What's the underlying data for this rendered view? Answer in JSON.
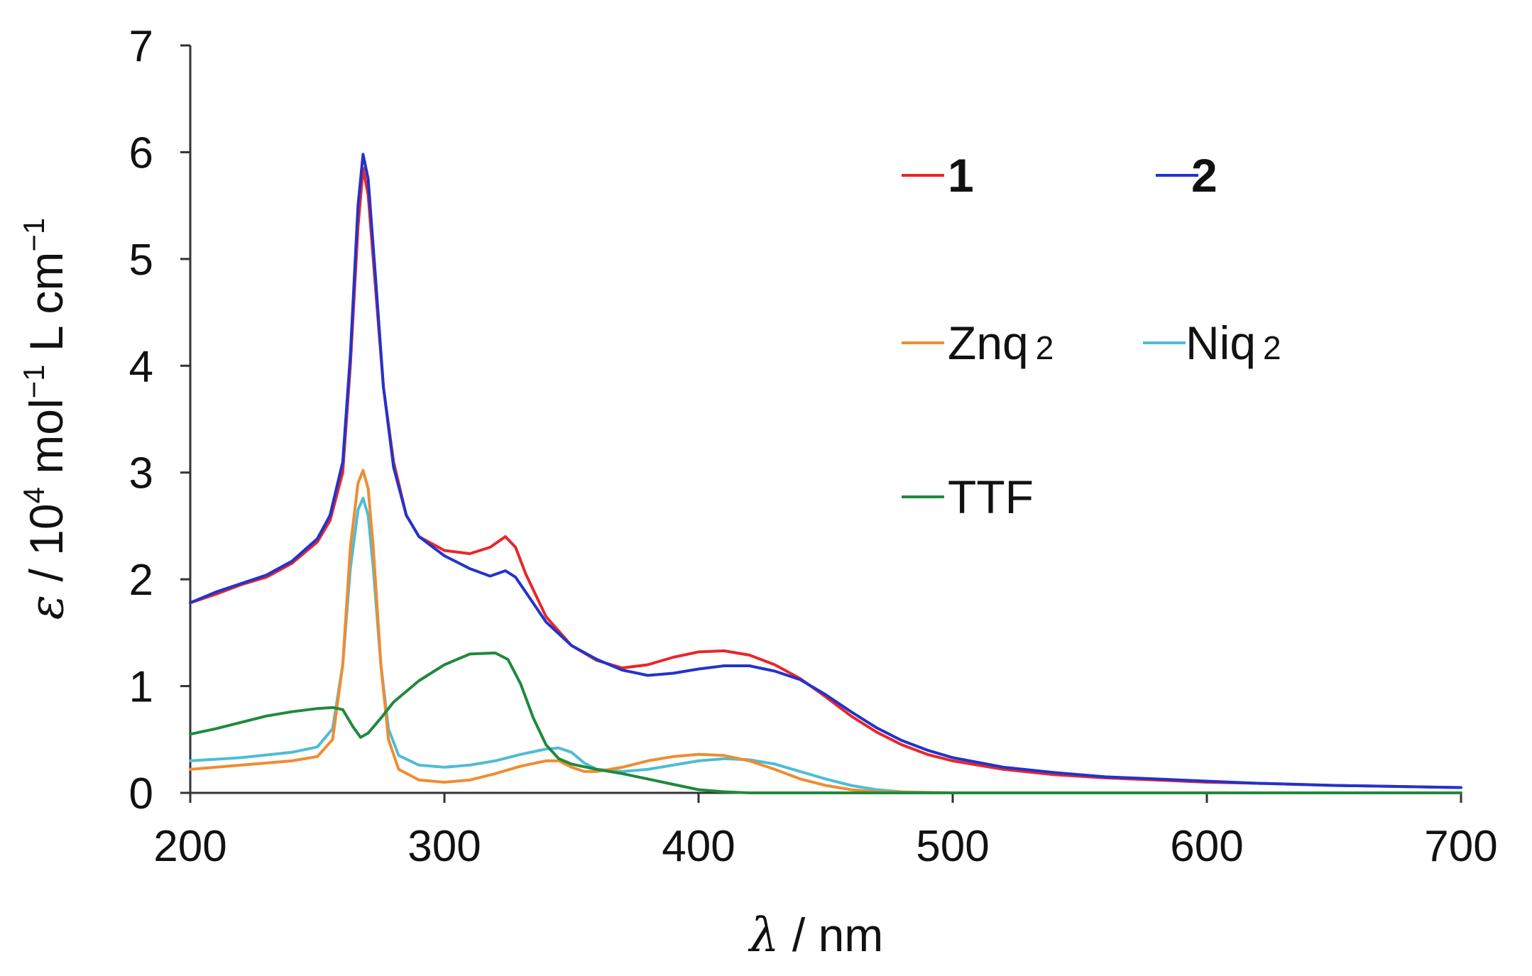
{
  "chart_data": {
    "type": "line",
    "title": "",
    "xlabel": {
      "symbol": "λ",
      "rest": " / nm"
    },
    "ylabel": {
      "symbol": "ε",
      "p1": " / 10",
      "p1_sup": "4",
      "p2": " mol",
      "p2_sup": "−1",
      "p3": " L cm",
      "p3_sup": "−1"
    },
    "xlim": [
      200,
      700
    ],
    "ylim": [
      0,
      7
    ],
    "xticks": [
      200,
      300,
      400,
      500,
      600,
      700
    ],
    "yticks": [
      0,
      1,
      2,
      3,
      4,
      5,
      6,
      7
    ],
    "grid": false,
    "legend_position": "top-right",
    "series": [
      {
        "key": "s1",
        "name": "1",
        "bold": true,
        "color": "#e8262b",
        "points": [
          [
            200,
            1.78
          ],
          [
            210,
            1.86
          ],
          [
            220,
            1.95
          ],
          [
            230,
            2.02
          ],
          [
            240,
            2.15
          ],
          [
            250,
            2.35
          ],
          [
            255,
            2.55
          ],
          [
            260,
            3.0
          ],
          [
            263,
            4.0
          ],
          [
            266,
            5.3
          ],
          [
            268,
            5.85
          ],
          [
            270,
            5.6
          ],
          [
            273,
            4.7
          ],
          [
            276,
            3.8
          ],
          [
            280,
            3.1
          ],
          [
            285,
            2.6
          ],
          [
            290,
            2.4
          ],
          [
            300,
            2.27
          ],
          [
            310,
            2.24
          ],
          [
            318,
            2.3
          ],
          [
            324,
            2.4
          ],
          [
            328,
            2.3
          ],
          [
            332,
            2.05
          ],
          [
            340,
            1.65
          ],
          [
            350,
            1.38
          ],
          [
            360,
            1.24
          ],
          [
            370,
            1.17
          ],
          [
            380,
            1.2
          ],
          [
            390,
            1.27
          ],
          [
            400,
            1.32
          ],
          [
            410,
            1.33
          ],
          [
            420,
            1.29
          ],
          [
            430,
            1.2
          ],
          [
            440,
            1.07
          ],
          [
            450,
            0.9
          ],
          [
            460,
            0.72
          ],
          [
            470,
            0.57
          ],
          [
            480,
            0.45
          ],
          [
            490,
            0.36
          ],
          [
            500,
            0.3
          ],
          [
            520,
            0.22
          ],
          [
            540,
            0.17
          ],
          [
            560,
            0.14
          ],
          [
            580,
            0.12
          ],
          [
            600,
            0.1
          ],
          [
            620,
            0.09
          ],
          [
            650,
            0.07
          ],
          [
            700,
            0.05
          ]
        ]
      },
      {
        "key": "s2",
        "name": "2",
        "bold": true,
        "color": "#2233cc",
        "points": [
          [
            200,
            1.78
          ],
          [
            210,
            1.88
          ],
          [
            220,
            1.96
          ],
          [
            230,
            2.04
          ],
          [
            240,
            2.17
          ],
          [
            250,
            2.38
          ],
          [
            255,
            2.6
          ],
          [
            260,
            3.1
          ],
          [
            263,
            4.1
          ],
          [
            266,
            5.5
          ],
          [
            268,
            5.98
          ],
          [
            270,
            5.75
          ],
          [
            273,
            4.8
          ],
          [
            276,
            3.8
          ],
          [
            280,
            3.05
          ],
          [
            285,
            2.6
          ],
          [
            290,
            2.4
          ],
          [
            300,
            2.22
          ],
          [
            310,
            2.1
          ],
          [
            318,
            2.03
          ],
          [
            324,
            2.08
          ],
          [
            328,
            2.02
          ],
          [
            332,
            1.88
          ],
          [
            340,
            1.6
          ],
          [
            350,
            1.38
          ],
          [
            360,
            1.25
          ],
          [
            370,
            1.15
          ],
          [
            380,
            1.1
          ],
          [
            390,
            1.12
          ],
          [
            400,
            1.16
          ],
          [
            410,
            1.19
          ],
          [
            420,
            1.19
          ],
          [
            430,
            1.14
          ],
          [
            440,
            1.06
          ],
          [
            450,
            0.92
          ],
          [
            460,
            0.76
          ],
          [
            470,
            0.61
          ],
          [
            480,
            0.49
          ],
          [
            490,
            0.4
          ],
          [
            500,
            0.33
          ],
          [
            520,
            0.24
          ],
          [
            540,
            0.19
          ],
          [
            560,
            0.15
          ],
          [
            580,
            0.13
          ],
          [
            600,
            0.11
          ],
          [
            620,
            0.09
          ],
          [
            650,
            0.07
          ],
          [
            700,
            0.05
          ]
        ]
      },
      {
        "key": "zn",
        "name": "Znq",
        "sub": "2",
        "bold": false,
        "color": "#f08c30",
        "points": [
          [
            200,
            0.22
          ],
          [
            220,
            0.26
          ],
          [
            240,
            0.3
          ],
          [
            250,
            0.34
          ],
          [
            256,
            0.5
          ],
          [
            260,
            1.2
          ],
          [
            263,
            2.3
          ],
          [
            266,
            2.9
          ],
          [
            268,
            3.02
          ],
          [
            270,
            2.85
          ],
          [
            272,
            2.3
          ],
          [
            275,
            1.2
          ],
          [
            278,
            0.5
          ],
          [
            282,
            0.22
          ],
          [
            290,
            0.12
          ],
          [
            300,
            0.1
          ],
          [
            310,
            0.12
          ],
          [
            320,
            0.18
          ],
          [
            330,
            0.25
          ],
          [
            340,
            0.3
          ],
          [
            345,
            0.3
          ],
          [
            350,
            0.24
          ],
          [
            355,
            0.2
          ],
          [
            360,
            0.2
          ],
          [
            370,
            0.24
          ],
          [
            380,
            0.3
          ],
          [
            390,
            0.34
          ],
          [
            400,
            0.36
          ],
          [
            410,
            0.35
          ],
          [
            420,
            0.3
          ],
          [
            430,
            0.22
          ],
          [
            440,
            0.13
          ],
          [
            450,
            0.07
          ],
          [
            460,
            0.03
          ],
          [
            470,
            0.01
          ],
          [
            500,
            0.0
          ],
          [
            700,
            0.0
          ]
        ]
      },
      {
        "key": "ni",
        "name": "Niq",
        "sub": "2",
        "bold": false,
        "color": "#4fbcd4",
        "points": [
          [
            200,
            0.3
          ],
          [
            220,
            0.33
          ],
          [
            240,
            0.38
          ],
          [
            250,
            0.43
          ],
          [
            256,
            0.6
          ],
          [
            260,
            1.2
          ],
          [
            263,
            2.1
          ],
          [
            266,
            2.65
          ],
          [
            268,
            2.76
          ],
          [
            270,
            2.6
          ],
          [
            272,
            2.1
          ],
          [
            275,
            1.2
          ],
          [
            278,
            0.6
          ],
          [
            282,
            0.35
          ],
          [
            290,
            0.26
          ],
          [
            300,
            0.24
          ],
          [
            310,
            0.26
          ],
          [
            320,
            0.3
          ],
          [
            330,
            0.36
          ],
          [
            340,
            0.41
          ],
          [
            345,
            0.42
          ],
          [
            350,
            0.38
          ],
          [
            355,
            0.28
          ],
          [
            360,
            0.22
          ],
          [
            370,
            0.2
          ],
          [
            380,
            0.22
          ],
          [
            390,
            0.26
          ],
          [
            400,
            0.3
          ],
          [
            410,
            0.32
          ],
          [
            420,
            0.31
          ],
          [
            430,
            0.27
          ],
          [
            440,
            0.2
          ],
          [
            450,
            0.13
          ],
          [
            460,
            0.07
          ],
          [
            470,
            0.03
          ],
          [
            480,
            0.01
          ],
          [
            500,
            0.0
          ],
          [
            700,
            0.0
          ]
        ]
      },
      {
        "key": "ttf",
        "name": "TTF",
        "bold": false,
        "color": "#1e8a3c",
        "points": [
          [
            200,
            0.55
          ],
          [
            210,
            0.6
          ],
          [
            220,
            0.66
          ],
          [
            230,
            0.72
          ],
          [
            240,
            0.76
          ],
          [
            250,
            0.79
          ],
          [
            256,
            0.8
          ],
          [
            260,
            0.78
          ],
          [
            264,
            0.62
          ],
          [
            267,
            0.52
          ],
          [
            270,
            0.56
          ],
          [
            275,
            0.7
          ],
          [
            280,
            0.85
          ],
          [
            290,
            1.05
          ],
          [
            300,
            1.2
          ],
          [
            310,
            1.3
          ],
          [
            320,
            1.31
          ],
          [
            325,
            1.25
          ],
          [
            330,
            1.02
          ],
          [
            335,
            0.7
          ],
          [
            340,
            0.45
          ],
          [
            345,
            0.32
          ],
          [
            350,
            0.27
          ],
          [
            360,
            0.22
          ],
          [
            370,
            0.18
          ],
          [
            380,
            0.13
          ],
          [
            390,
            0.08
          ],
          [
            400,
            0.03
          ],
          [
            410,
            0.01
          ],
          [
            420,
            0.0
          ],
          [
            700,
            0.0
          ]
        ]
      }
    ]
  }
}
